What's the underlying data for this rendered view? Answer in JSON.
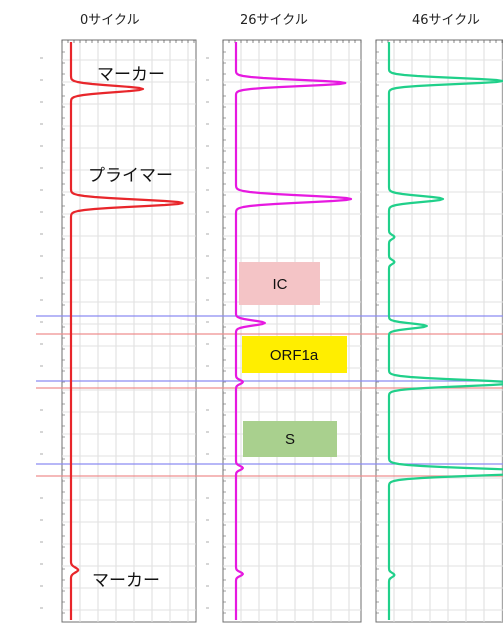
{
  "chart_data": {
    "type": "line",
    "panels": [
      {
        "title": "0サイクル",
        "color": "#e8262b",
        "peaks": [
          {
            "y": 89,
            "h": 1.0,
            "w": 3.2
          },
          {
            "y": 203,
            "h": 1.55,
            "w": 3.4
          },
          {
            "y": 570,
            "h": 0.1,
            "w": 2.5
          }
        ]
      },
      {
        "title": "26サイクル",
        "color": "#e619e0",
        "peaks": [
          {
            "y": 83,
            "h": 0.95,
            "w": 3.0
          },
          {
            "y": 199,
            "h": 1.0,
            "w": 3.4
          },
          {
            "y": 323,
            "h": 0.25,
            "w": 2.5
          },
          {
            "y": 382,
            "h": 0.06,
            "w": 2.0
          },
          {
            "y": 468,
            "h": 0.06,
            "w": 2.0
          },
          {
            "y": 574,
            "h": 0.06,
            "w": 2.0
          }
        ]
      },
      {
        "title": "46サイクル",
        "color": "#20d08a",
        "peaks": [
          {
            "y": 81,
            "h": 1.05,
            "w": 3.0
          },
          {
            "y": 199,
            "h": 0.5,
            "w": 3.0
          },
          {
            "y": 237,
            "h": 0.05,
            "w": 2.0
          },
          {
            "y": 262,
            "h": 0.05,
            "w": 2.0
          },
          {
            "y": 326,
            "h": 0.35,
            "w": 2.5
          },
          {
            "y": 383,
            "h": 1.15,
            "w": 3.2
          },
          {
            "y": 472,
            "h": 1.45,
            "w": 3.4
          },
          {
            "y": 575,
            "h": 0.05,
            "w": 2.0
          }
        ]
      }
    ],
    "annotations": [
      "マーカー",
      "プライマー",
      "マーカー"
    ],
    "regions": [
      {
        "label": "IC",
        "color": "#f4c4c6"
      },
      {
        "label": "ORF1a",
        "color": "#ffee00"
      },
      {
        "label": "S",
        "color": "#a9d08e"
      }
    ],
    "reference_lines": {
      "blue": "#8c8cf2",
      "red": "#ef8f8f"
    },
    "grid": true
  }
}
